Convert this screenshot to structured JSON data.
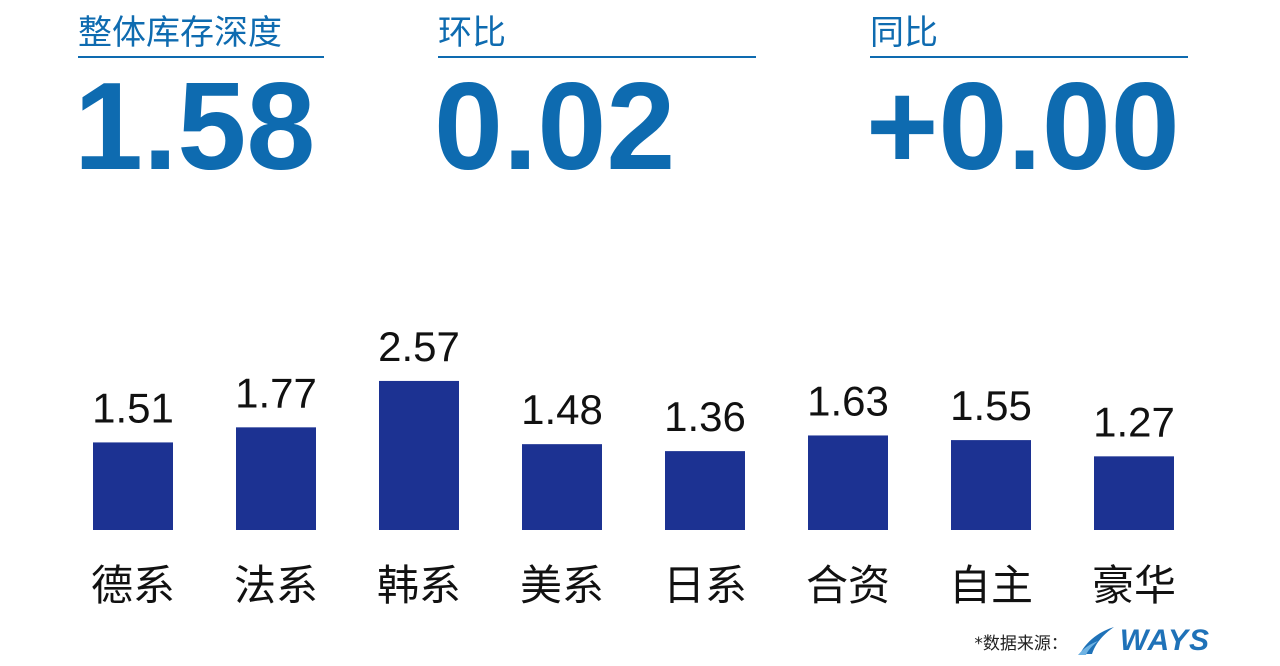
{
  "kpis": [
    {
      "label": "整体库存深度",
      "value": "1.58"
    },
    {
      "label": "环比",
      "value": "0.02"
    },
    {
      "label": "同比",
      "value": "+0.00"
    }
  ],
  "chart_data": {
    "type": "bar",
    "categories": [
      "德系",
      "法系",
      "韩系",
      "美系",
      "日系",
      "合资",
      "自主",
      "豪华"
    ],
    "values": [
      1.51,
      1.77,
      2.57,
      1.48,
      1.36,
      1.63,
      1.55,
      1.27
    ],
    "value_labels": [
      "1.51",
      "1.77",
      "2.57",
      "1.48",
      "1.36",
      "1.63",
      "1.55",
      "1.27"
    ],
    "bar_color": "#1c3292"
  },
  "footer": {
    "source_label": "*数据来源：",
    "logo_text": "WAYS"
  },
  "colors": {
    "accent": "#0e6bb0",
    "bar": "#1c3292",
    "logo": "#1f72b8"
  }
}
